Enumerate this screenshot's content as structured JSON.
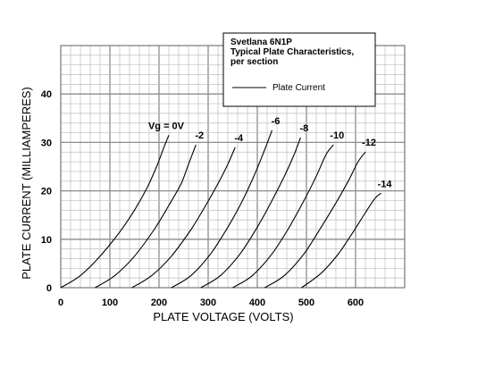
{
  "chart_data": {
    "type": "line",
    "title_lines": [
      "Svetlana 6N1P",
      "Typical Plate Characteristics,",
      "per section"
    ],
    "xlabel": "PLATE VOLTAGE (VOLTS)",
    "ylabel": "PLATE CURRENT (MILLIAMPERES)",
    "xlim": [
      0,
      700
    ],
    "ylim": [
      0,
      50
    ],
    "x_ticks": [
      0,
      100,
      200,
      300,
      400,
      500,
      600
    ],
    "y_ticks": [
      0,
      10,
      20,
      30,
      40
    ],
    "grid": true,
    "legend": {
      "placement": "top-right",
      "entries": [
        "Plate Current"
      ]
    },
    "series": [
      {
        "name": "Vg = 0V",
        "x": [
          0,
          40,
          80,
          120,
          150,
          175,
          195,
          210,
          220
        ],
        "y": [
          0,
          2.5,
          6.5,
          11.5,
          16,
          20.5,
          25,
          29,
          31.5
        ]
      },
      {
        "name": "-2",
        "x": [
          70,
          110,
          150,
          190,
          220,
          245,
          260,
          275
        ],
        "y": [
          0,
          2.5,
          6.5,
          12,
          17,
          21.5,
          25.5,
          29.5
        ]
      },
      {
        "name": "-4",
        "x": [
          145,
          185,
          225,
          265,
          295,
          320,
          340,
          355
        ],
        "y": [
          0,
          2.5,
          6.5,
          12,
          17,
          21.5,
          25.5,
          29
        ]
      },
      {
        "name": "-6",
        "x": [
          225,
          265,
          305,
          340,
          370,
          395,
          415,
          430
        ],
        "y": [
          0,
          2.5,
          7,
          12.5,
          18,
          23.5,
          28.5,
          32.5
        ]
      },
      {
        "name": "-8",
        "x": [
          285,
          325,
          365,
          400,
          430,
          455,
          475,
          488
        ],
        "y": [
          0,
          2.5,
          7,
          12.5,
          18,
          23,
          27.5,
          31
        ]
      },
      {
        "name": "-10",
        "x": [
          350,
          390,
          430,
          465,
          495,
          520,
          540,
          555
        ],
        "y": [
          0,
          2.5,
          7,
          12.5,
          18,
          23,
          27.5,
          29.5
        ]
      },
      {
        "name": "-12",
        "x": [
          415,
          455,
          495,
          530,
          560,
          585,
          605,
          620
        ],
        "y": [
          0,
          2.5,
          7,
          12.5,
          17.5,
          22,
          26,
          28
        ]
      },
      {
        "name": "-14",
        "x": [
          490,
          530,
          565,
          595,
          620,
          640,
          652
        ],
        "y": [
          0,
          3,
          7,
          11.5,
          15.5,
          18.5,
          19.5
        ]
      }
    ]
  }
}
